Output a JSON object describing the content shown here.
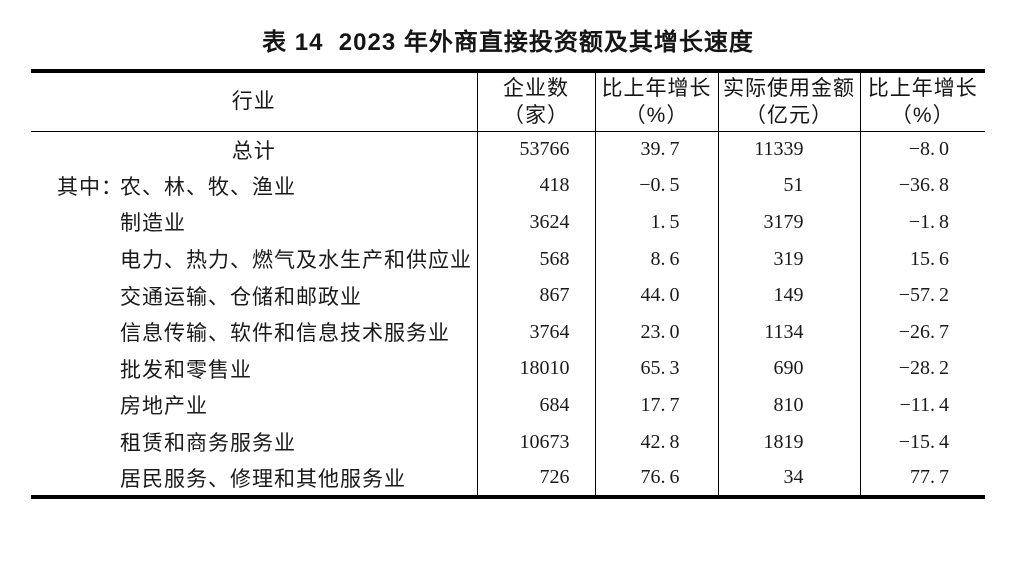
{
  "title": "表 14  2023 年外商直接投资额及其增长速度",
  "colors": {
    "background": "#ffffff",
    "border": "#000000",
    "text": "#1a1a1a"
  },
  "table": {
    "columns": [
      {
        "label": "行业",
        "unit": ""
      },
      {
        "label": "企业数",
        "unit": "（家）"
      },
      {
        "label": "比上年增长",
        "unit": "（%）"
      },
      {
        "label": "实际使用金额",
        "unit": "（亿元）"
      },
      {
        "label": "比上年增长",
        "unit": "（%）"
      }
    ],
    "rows": [
      {
        "prefix": "",
        "industry": "总计",
        "enterprises": "53766",
        "enterprises_growth": "39.7",
        "amount": "11339",
        "amount_growth": "-8.0"
      },
      {
        "prefix": "其中：",
        "industry": "农、林、牧、渔业",
        "enterprises": "418",
        "enterprises_growth": "-0.5",
        "amount": "51",
        "amount_growth": "-36.8"
      },
      {
        "prefix": "",
        "industry": "制造业",
        "enterprises": "3624",
        "enterprises_growth": "1.5",
        "amount": "3179",
        "amount_growth": "-1.8"
      },
      {
        "prefix": "",
        "industry": "电力、热力、燃气及水生产和供应业",
        "enterprises": "568",
        "enterprises_growth": "8.6",
        "amount": "319",
        "amount_growth": "15.6"
      },
      {
        "prefix": "",
        "industry": "交通运输、仓储和邮政业",
        "enterprises": "867",
        "enterprises_growth": "44.0",
        "amount": "149",
        "amount_growth": "-57.2"
      },
      {
        "prefix": "",
        "industry": "信息传输、软件和信息技术服务业",
        "enterprises": "3764",
        "enterprises_growth": "23.0",
        "amount": "1134",
        "amount_growth": "-26.7"
      },
      {
        "prefix": "",
        "industry": "批发和零售业",
        "enterprises": "18010",
        "enterprises_growth": "65.3",
        "amount": "690",
        "amount_growth": "-28.2"
      },
      {
        "prefix": "",
        "industry": "房地产业",
        "enterprises": "684",
        "enterprises_growth": "17.7",
        "amount": "810",
        "amount_growth": "-11.4"
      },
      {
        "prefix": "",
        "industry": "租赁和商务服务业",
        "enterprises": "10673",
        "enterprises_growth": "42.8",
        "amount": "1819",
        "amount_growth": "-15.4"
      },
      {
        "prefix": "",
        "industry": "居民服务、修理和其他服务业",
        "enterprises": "726",
        "enterprises_growth": "76.6",
        "amount": "34",
        "amount_growth": "77.7"
      }
    ]
  }
}
